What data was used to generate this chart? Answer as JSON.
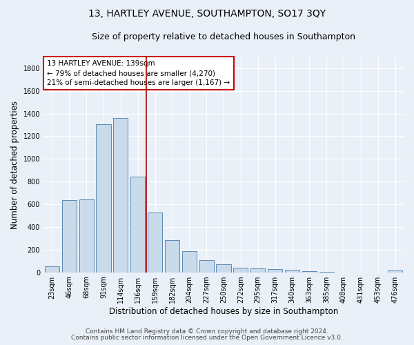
{
  "title": "13, HARTLEY AVENUE, SOUTHAMPTON, SO17 3QY",
  "subtitle": "Size of property relative to detached houses in Southampton",
  "xlabel": "Distribution of detached houses by size in Southampton",
  "ylabel": "Number of detached properties",
  "bar_color": "#c9daea",
  "bar_edge_color": "#5a8ab5",
  "background_color": "#eaf0f8",
  "grid_color": "#ffffff",
  "categories": [
    "23sqm",
    "46sqm",
    "68sqm",
    "91sqm",
    "114sqm",
    "136sqm",
    "159sqm",
    "182sqm",
    "204sqm",
    "227sqm",
    "250sqm",
    "272sqm",
    "295sqm",
    "317sqm",
    "340sqm",
    "363sqm",
    "385sqm",
    "408sqm",
    "431sqm",
    "453sqm",
    "476sqm"
  ],
  "values": [
    55,
    635,
    640,
    1305,
    1360,
    845,
    530,
    285,
    185,
    110,
    70,
    40,
    37,
    27,
    20,
    8,
    5,
    0,
    0,
    0,
    15
  ],
  "ylim": [
    0,
    1900
  ],
  "yticks": [
    0,
    200,
    400,
    600,
    800,
    1000,
    1200,
    1400,
    1600,
    1800
  ],
  "vline_x": 5.5,
  "vline_color": "#aa0000",
  "annotation_text": "13 HARTLEY AVENUE: 139sqm\n← 79% of detached houses are smaller (4,270)\n21% of semi-detached houses are larger (1,167) →",
  "annotation_box_color": "white",
  "annotation_box_edge_color": "#cc0000",
  "footer_line1": "Contains HM Land Registry data © Crown copyright and database right 2024.",
  "footer_line2": "Contains public sector information licensed under the Open Government Licence v3.0.",
  "title_fontsize": 10,
  "subtitle_fontsize": 9,
  "xlabel_fontsize": 8.5,
  "ylabel_fontsize": 8.5,
  "tick_fontsize": 7,
  "annotation_fontsize": 7.5,
  "footer_fontsize": 6.5
}
